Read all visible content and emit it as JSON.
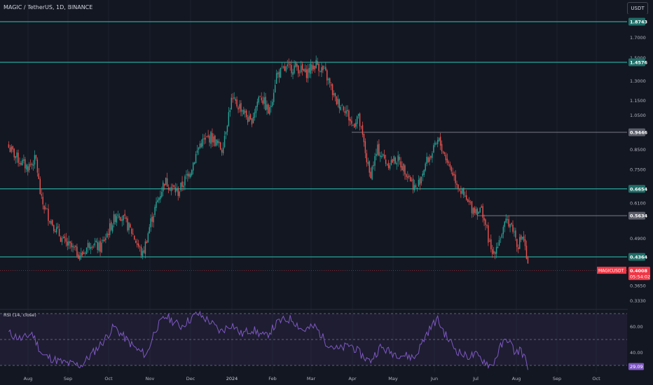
{
  "header": {
    "symbol_title": "MAGIC / TetherUS, 1D, BINANCE",
    "currency_button": "USDT"
  },
  "colors": {
    "background": "#131722",
    "up": "#26a69a",
    "down": "#ef5350",
    "support_line": "#26a69a",
    "resistance_line": "#787b86",
    "rsi_line": "#7e57c2",
    "rsi_band": "#7e57c2",
    "last_price_badge": "#f23645"
  },
  "chart_data": [
    {
      "type": "candlestick",
      "title": "MAGIC / TetherUS, 1D, BINANCE",
      "y_scale": "log",
      "ylim": [
        0.32,
        2.05
      ],
      "x_labels": [
        "Aug",
        "Sep",
        "Oct",
        "Nov",
        "Dec",
        "2024",
        "Feb",
        "Mar",
        "Apr",
        "May",
        "Jun",
        "Jul",
        "Aug",
        "Sep",
        "Oct"
      ],
      "y_ticks": [
        "1.7000",
        "1.5000",
        "1.3000",
        "1.1500",
        "1.0500",
        "0.8500",
        "0.7500",
        "0.6100",
        "0.4900",
        "0.3650",
        "0.3330"
      ],
      "horizontal_levels": [
        {
          "value": 1.8743,
          "label": "1.8743",
          "style": "support"
        },
        {
          "value": 1.4576,
          "label": "1.4576",
          "style": "support"
        },
        {
          "value": 0.9446,
          "label": "0.9446",
          "style": "resistance"
        },
        {
          "value": 0.6654,
          "label": "0.6654",
          "style": "support"
        },
        {
          "value": 0.5634,
          "label": "0.5634",
          "style": "resistance"
        },
        {
          "value": 0.4364,
          "label": "0.4364",
          "style": "support"
        }
      ],
      "last_price": {
        "symbol": "MAGICUSDT",
        "value": "0.4008",
        "countdown": "05:54:02"
      },
      "price_path": [
        {
          "date": "Jul 17",
          "close": 0.86
        },
        {
          "date": "Jul 24",
          "close": 0.8
        },
        {
          "date": "Jul 31",
          "close": 0.76
        },
        {
          "date": "Aug 7",
          "close": 0.8
        },
        {
          "date": "Aug 11",
          "close": 0.62
        },
        {
          "date": "Aug 18",
          "close": 0.55
        },
        {
          "date": "Aug 28",
          "close": 0.48
        },
        {
          "date": "Sep 11",
          "close": 0.44
        },
        {
          "date": "Sep 18",
          "close": 0.48
        },
        {
          "date": "Sep 25",
          "close": 0.46
        },
        {
          "date": "Oct 8",
          "close": 0.58
        },
        {
          "date": "Oct 18",
          "close": 0.51
        },
        {
          "date": "Oct 26",
          "close": 0.44
        },
        {
          "date": "Nov 2",
          "close": 0.55
        },
        {
          "date": "Nov 12",
          "close": 0.7
        },
        {
          "date": "Nov 22",
          "close": 0.65
        },
        {
          "date": "Dec 1",
          "close": 0.75
        },
        {
          "date": "Dec 8",
          "close": 0.88
        },
        {
          "date": "Dec 16",
          "close": 0.92
        },
        {
          "date": "Dec 24",
          "close": 0.85
        },
        {
          "date": "Dec 31",
          "close": 1.15
        },
        {
          "date": "Jan 8",
          "close": 1.1
        },
        {
          "date": "Jan 15",
          "close": 1.0
        },
        {
          "date": "Jan 22",
          "close": 1.2
        },
        {
          "date": "Jan 29",
          "close": 1.06
        },
        {
          "date": "Feb 4",
          "close": 1.35
        },
        {
          "date": "Feb 12",
          "close": 1.4
        },
        {
          "date": "Feb 20",
          "close": 1.42
        },
        {
          "date": "Feb 27",
          "close": 1.36
        },
        {
          "date": "Mar 5",
          "close": 1.45
        },
        {
          "date": "Mar 12",
          "close": 1.35
        },
        {
          "date": "Mar 19",
          "close": 1.15
        },
        {
          "date": "Mar 26",
          "close": 1.1
        },
        {
          "date": "Apr 1",
          "close": 0.98
        },
        {
          "date": "Apr 5",
          "close": 1.05
        },
        {
          "date": "Apr 9",
          "close": 0.9
        },
        {
          "date": "Apr 14",
          "close": 0.72
        },
        {
          "date": "Apr 20",
          "close": 0.85
        },
        {
          "date": "Apr 27",
          "close": 0.78
        },
        {
          "date": "May 4",
          "close": 0.8
        },
        {
          "date": "May 11",
          "close": 0.74
        },
        {
          "date": "May 18",
          "close": 0.66
        },
        {
          "date": "May 25",
          "close": 0.78
        },
        {
          "date": "Jun 1",
          "close": 0.85
        },
        {
          "date": "Jun 4",
          "close": 0.9
        },
        {
          "date": "Jun 10",
          "close": 0.8
        },
        {
          "date": "Jun 17",
          "close": 0.7
        },
        {
          "date": "Jun 24",
          "close": 0.62
        },
        {
          "date": "Jun 29",
          "close": 0.59
        },
        {
          "date": "Jul 6",
          "close": 0.58
        },
        {
          "date": "Jul 10",
          "close": 0.5
        },
        {
          "date": "Jul 13",
          "close": 0.44
        },
        {
          "date": "Jul 18",
          "close": 0.48
        },
        {
          "date": "Jul 25",
          "close": 0.55
        },
        {
          "date": "Jul 29",
          "close": 0.52
        },
        {
          "date": "Aug 2",
          "close": 0.47
        },
        {
          "date": "Aug 6",
          "close": 0.5
        },
        {
          "date": "Aug 10",
          "close": 0.4008
        }
      ]
    },
    {
      "type": "line",
      "title": "RSI (14, close)",
      "y_ticks": [
        "60.00",
        "40.00"
      ],
      "band": [
        30,
        70
      ],
      "midline": 50,
      "last_value": "29.09",
      "series": [
        {
          "points": [
            {
              "date": "Jul 17",
              "value": 55
            },
            {
              "date": "Jul 27",
              "value": 50
            },
            {
              "date": "Aug 4",
              "value": 55
            },
            {
              "date": "Aug 12",
              "value": 38
            },
            {
              "date": "Aug 20",
              "value": 35
            },
            {
              "date": "Aug 28",
              "value": 32
            },
            {
              "date": "Sep 11",
              "value": 30
            },
            {
              "date": "Sep 20",
              "value": 40
            },
            {
              "date": "Sep 27",
              "value": 48
            },
            {
              "date": "Oct 5",
              "value": 60
            },
            {
              "date": "Oct 14",
              "value": 50
            },
            {
              "date": "Oct 22",
              "value": 42
            },
            {
              "date": "Oct 29",
              "value": 38
            },
            {
              "date": "Nov 5",
              "value": 58
            },
            {
              "date": "Nov 13",
              "value": 68
            },
            {
              "date": "Nov 24",
              "value": 60
            },
            {
              "date": "Dec 6",
              "value": 70
            },
            {
              "date": "Dec 15",
              "value": 64
            },
            {
              "date": "Dec 23",
              "value": 56
            },
            {
              "date": "Jan 1",
              "value": 62
            },
            {
              "date": "Jan 8",
              "value": 54
            },
            {
              "date": "Jan 16",
              "value": 58
            },
            {
              "date": "Jan 26",
              "value": 52
            },
            {
              "date": "Feb 6",
              "value": 64
            },
            {
              "date": "Feb 16",
              "value": 66
            },
            {
              "date": "Feb 25",
              "value": 57
            },
            {
              "date": "Mar 4",
              "value": 60
            },
            {
              "date": "Mar 12",
              "value": 48
            },
            {
              "date": "Mar 21",
              "value": 42
            },
            {
              "date": "Mar 30",
              "value": 46
            },
            {
              "date": "Apr 8",
              "value": 38
            },
            {
              "date": "Apr 14",
              "value": 33
            },
            {
              "date": "Apr 22",
              "value": 44
            },
            {
              "date": "Apr 30",
              "value": 40
            },
            {
              "date": "May 8",
              "value": 38
            },
            {
              "date": "May 17",
              "value": 36
            },
            {
              "date": "May 26",
              "value": 55
            },
            {
              "date": "Jun 3",
              "value": 66
            },
            {
              "date": "Jun 10",
              "value": 52
            },
            {
              "date": "Jun 17",
              "value": 42
            },
            {
              "date": "Jun 24",
              "value": 37
            },
            {
              "date": "Jul 1",
              "value": 38
            },
            {
              "date": "Jul 8",
              "value": 33
            },
            {
              "date": "Jul 13",
              "value": 29
            },
            {
              "date": "Jul 20",
              "value": 45
            },
            {
              "date": "Jul 25",
              "value": 51
            },
            {
              "date": "Jul 31",
              "value": 39
            },
            {
              "date": "Aug 4",
              "value": 43
            },
            {
              "date": "Aug 10",
              "value": 29.09
            }
          ]
        }
      ]
    }
  ]
}
